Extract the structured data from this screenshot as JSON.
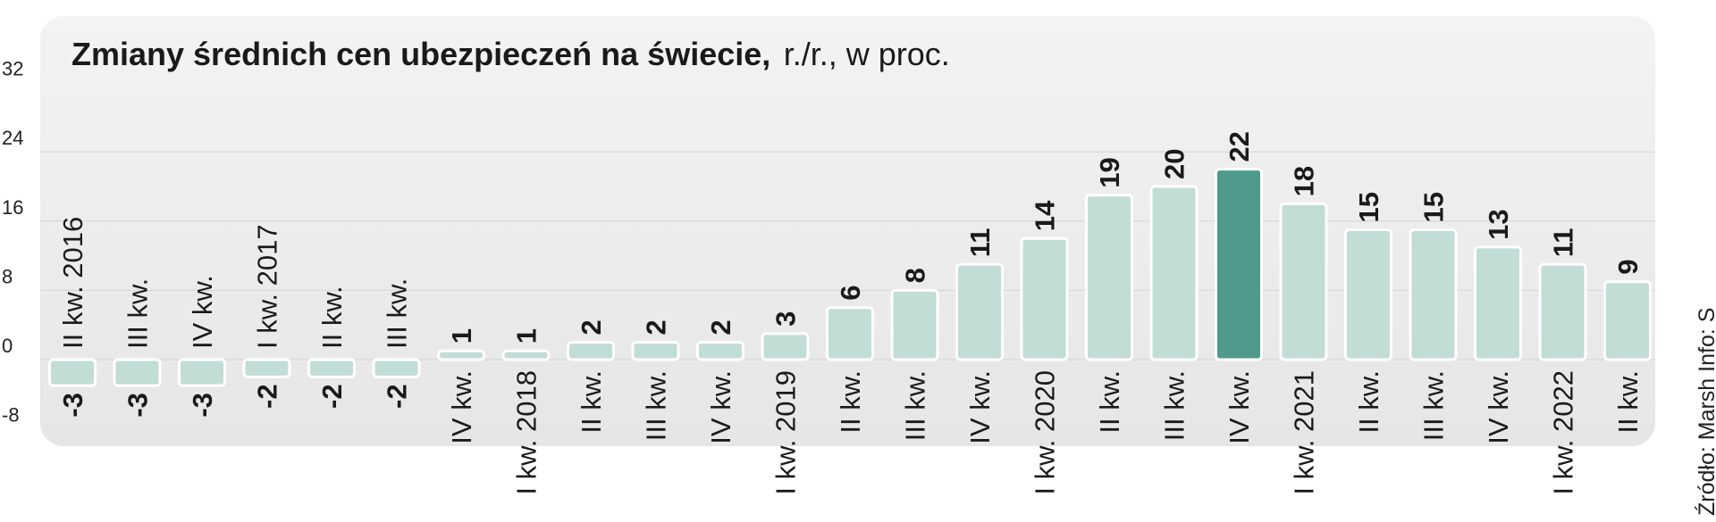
{
  "chart_data": {
    "type": "bar",
    "title": "Zmiany średnich cen ubezpieczeń na świecie,",
    "subtitle": "r./r., w proc.",
    "yticks": [
      "32",
      "24",
      "16",
      "8",
      "0",
      "-8"
    ],
    "ylim": [
      -8,
      32
    ],
    "grid": true,
    "categories": [
      "II kw. 2016",
      "III kw.",
      "IV kw.",
      "I kw. 2017",
      "II kw.",
      "III kw.",
      "IV kw.",
      "I kw. 2018",
      "II kw.",
      "III kw.",
      "IV kw.",
      "I kw. 2019",
      "II kw.",
      "III kw.",
      "IV kw.",
      "I kw. 2020",
      "II kw.",
      "III kw.",
      "IV kw.",
      "I kw. 2021",
      "II kw.",
      "III kw.",
      "IV kw.",
      "I kw. 2022",
      "II kw."
    ],
    "values": [
      -3,
      -3,
      -3,
      -2,
      -2,
      -2,
      1,
      1,
      2,
      2,
      2,
      3,
      6,
      8,
      11,
      14,
      19,
      20,
      22,
      18,
      15,
      15,
      13,
      11,
      9
    ],
    "value_labels": [
      "-3",
      "-3",
      "-3",
      "-2",
      "-2",
      "-2",
      "1",
      "1",
      "2",
      "2",
      "2",
      "3",
      "6",
      "8",
      "11",
      "14",
      "19",
      "20",
      "22",
      "18",
      "15",
      "15",
      "13",
      "11",
      "9"
    ],
    "highlight_index": 18,
    "colors": {
      "bar": "#c2dcd6",
      "bar_highlight": "#4f9a8c",
      "bar_outline": "#ffffff",
      "panel": "#ececec",
      "grid": "#d4d4d4"
    }
  },
  "source": "Źródło: Marsh   Info: S"
}
